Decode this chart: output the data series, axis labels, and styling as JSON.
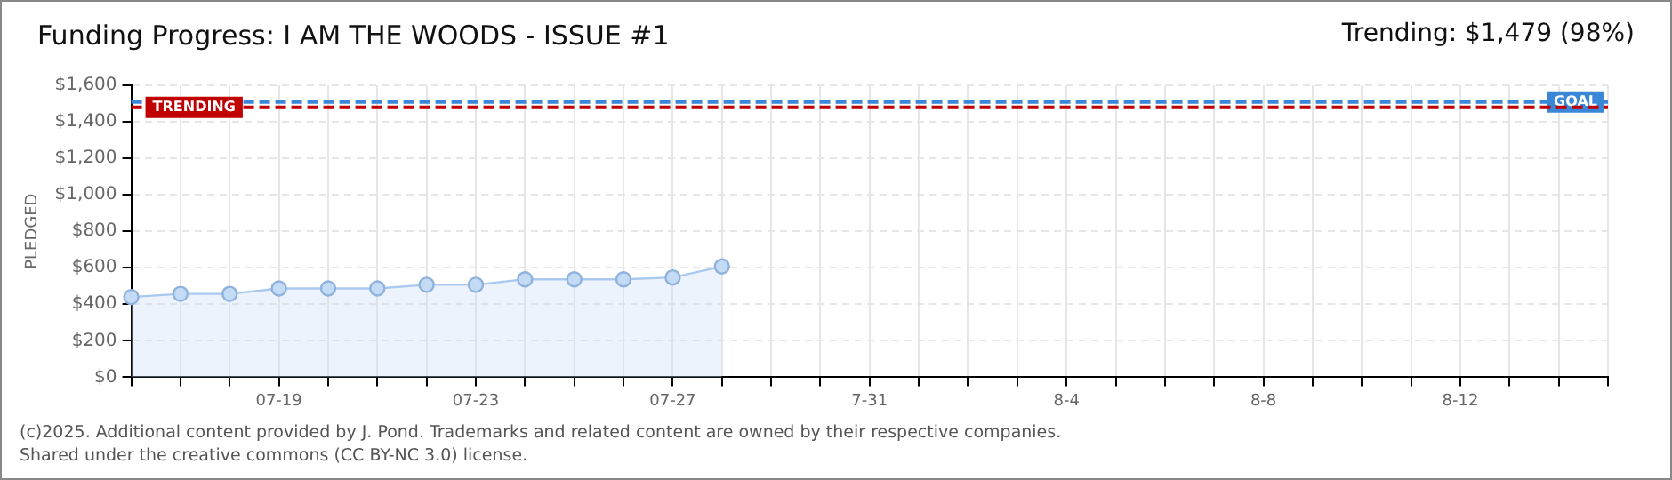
{
  "chart_data": {
    "type": "area",
    "title": "Funding Progress: I AM THE WOODS - ISSUE #1",
    "subtitle": "Trending: $1,479 (98%)",
    "ylabel": "PLEDGED",
    "categories": [
      null,
      null,
      null,
      "07-19",
      null,
      null,
      null,
      "07-23",
      null,
      null,
      null,
      "07-27",
      null,
      null,
      null,
      "7-31",
      null,
      null,
      null,
      "8-4",
      null,
      null,
      null,
      "8-8",
      null,
      null,
      null,
      "8-12",
      null,
      null,
      null
    ],
    "series": [
      {
        "color": "#a9c9f0",
        "values": [
          440,
          457,
          457,
          487,
          487,
          487,
          507,
          507,
          537,
          537,
          537,
          547,
          607,
          null,
          null,
          null,
          null,
          null,
          null,
          null,
          null,
          null,
          null,
          null,
          null,
          null,
          null,
          null,
          null,
          null,
          null
        ]
      }
    ],
    "ylim": [
      0,
      1600
    ],
    "yticks": [
      {
        "value": 0,
        "label": "$0"
      },
      {
        "value": 200,
        "label": "$200"
      },
      {
        "value": 400,
        "label": "$400"
      },
      {
        "value": 600,
        "label": "$600"
      },
      {
        "value": 800,
        "label": "$800"
      },
      {
        "value": 1000,
        "label": "$1,000"
      },
      {
        "value": 1200,
        "label": "$1,200"
      },
      {
        "value": 1400,
        "label": "$1,400"
      },
      {
        "value": 1600,
        "label": "$1,600"
      }
    ],
    "ref_lines": [
      {
        "axis": "y",
        "value": 1509,
        "label": "GOAL",
        "color": "#3a87d8",
        "line_style": "dashed"
      },
      {
        "axis": "y",
        "value": 1479,
        "label": "TRENDING",
        "color": "#c00000",
        "line_style": "dashed"
      }
    ],
    "grid": true,
    "legend": false,
    "marker": "circle",
    "line_style": "solid",
    "annotations": [
      "(c)2025. Additional content provided by J. Pond. Trademarks and related content are owned by their respective companies.",
      "Shared under the creative commons (CC BY-NC 3.0) license."
    ]
  }
}
